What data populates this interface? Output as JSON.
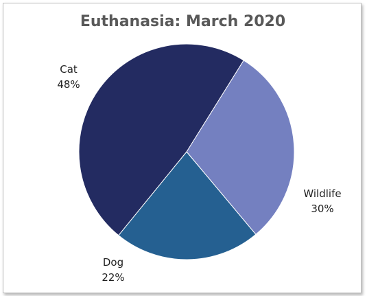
{
  "chart_data": {
    "type": "pie",
    "title": "Euthanasia: March 2020",
    "slices": [
      {
        "label": "Cat",
        "value": 48,
        "display": "48%",
        "color": "#232B61"
      },
      {
        "label": "Wildlife",
        "value": 30,
        "display": "30%",
        "color": "#7480C0"
      },
      {
        "label": "Dog",
        "value": 22,
        "display": "22%",
        "color": "#256091"
      }
    ]
  }
}
